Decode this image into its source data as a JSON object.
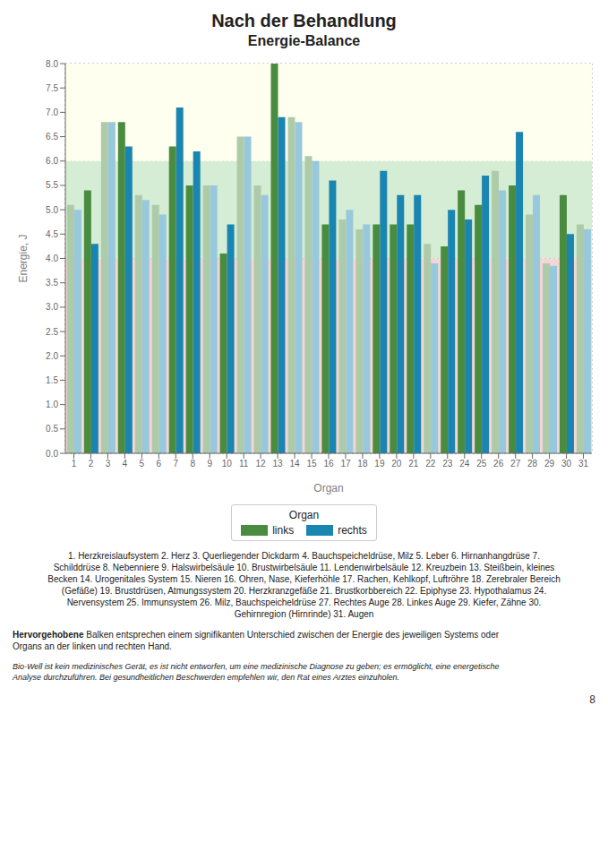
{
  "chart_data": {
    "type": "bar",
    "title": "Nach der Behandlung",
    "subtitle": "Energie-Balance",
    "xlabel": "Organ",
    "ylabel": "Energie, J",
    "categories": [
      1,
      2,
      3,
      4,
      5,
      6,
      7,
      8,
      9,
      10,
      11,
      12,
      13,
      14,
      15,
      16,
      17,
      18,
      19,
      20,
      21,
      22,
      23,
      24,
      25,
      26,
      27,
      28,
      29,
      30,
      31
    ],
    "series": [
      {
        "name": "links",
        "color": "#4a8c3f",
        "colors": [
          "#aecba9",
          "#4a8c3f",
          "#aecba9",
          "#4a8c3f",
          "#aecba9",
          "#aecba9",
          "#4a8c3f",
          "#4a8c3f",
          "#aecba9",
          "#4a8c3f",
          "#aecba9",
          "#aecba9",
          "#4a8c3f",
          "#aecba9",
          "#aecba9",
          "#4a8c3f",
          "#aecba9",
          "#aecba9",
          "#4a8c3f",
          "#4a8c3f",
          "#4a8c3f",
          "#aecba9",
          "#4a8c3f",
          "#4a8c3f",
          "#4a8c3f",
          "#aecba9",
          "#4a8c3f",
          "#aecba9",
          "#aecba9",
          "#4a8c3f",
          "#aecba9"
        ],
        "values": [
          5.1,
          5.4,
          6.8,
          6.8,
          5.3,
          5.1,
          6.3,
          5.5,
          5.5,
          4.1,
          6.5,
          5.5,
          8.0,
          6.9,
          6.1,
          4.7,
          4.8,
          4.6,
          4.7,
          4.7,
          4.7,
          4.3,
          4.25,
          5.4,
          5.1,
          5.8,
          5.5,
          4.9,
          3.9,
          5.3,
          4.7
        ]
      },
      {
        "name": "rechts",
        "color": "#1a85b0",
        "colors": [
          "#98c8db",
          "#1a85b0",
          "#98c8db",
          "#1a85b0",
          "#98c8db",
          "#98c8db",
          "#1a85b0",
          "#1a85b0",
          "#98c8db",
          "#1a85b0",
          "#98c8db",
          "#98c8db",
          "#1a85b0",
          "#98c8db",
          "#98c8db",
          "#1a85b0",
          "#98c8db",
          "#98c8db",
          "#1a85b0",
          "#1a85b0",
          "#1a85b0",
          "#98c8db",
          "#1a85b0",
          "#1a85b0",
          "#1a85b0",
          "#98c8db",
          "#1a85b0",
          "#98c8db",
          "#98c8db",
          "#1a85b0",
          "#98c8db"
        ],
        "values": [
          5.0,
          4.3,
          6.8,
          6.3,
          5.2,
          4.9,
          7.1,
          6.2,
          5.5,
          4.7,
          6.5,
          5.3,
          6.9,
          6.8,
          6.0,
          5.6,
          5.0,
          4.7,
          5.8,
          5.3,
          5.3,
          3.9,
          5.0,
          4.8,
          5.7,
          5.4,
          6.6,
          5.3,
          3.85,
          4.5,
          4.6
        ]
      }
    ],
    "ylim": [
      0.0,
      8.0
    ],
    "yticks": [
      {
        "value": 0,
        "label": "0.0"
      },
      0.5,
      {
        "value": 1,
        "label": "1.0"
      },
      1.5,
      {
        "value": 2,
        "label": "2.0"
      },
      2.5,
      {
        "value": 3,
        "label": "3.0"
      },
      3.5,
      {
        "value": 4,
        "label": "4.0"
      },
      4.5,
      {
        "value": 5,
        "label": "5.0"
      },
      5.5,
      {
        "value": 6,
        "label": "6.0"
      },
      6.5,
      {
        "value": 7,
        "label": "7.0"
      },
      7.5,
      {
        "value": 8,
        "label": "8.0"
      }
    ],
    "grid": true,
    "legend": "bottom",
    "legend_title": "Organ",
    "zones": [
      {
        "from": 0,
        "to": 4,
        "color": "#f5d5d5"
      },
      {
        "from": 4,
        "to": 6,
        "color": "#d5edd5"
      },
      {
        "from": 6,
        "to": 8,
        "color": "#fffff0"
      }
    ],
    "annotations": [
      "1. Herzkreislaufsystem 2. Herz 3. Querliegender Dickdarm 4. Bauchspeicheldrüse, Milz 5. Leber 6. Hirnanhangdrüse 7.",
      "Schilddrüse 8. Nebenniere 9. Halswirbelsäule 10. Brustwirbelsäule 11. Lendenwirbelsäule 12. Kreuzbein 13. Steißbein, kleines",
      "Becken 14. Urogenitales System 15. Nieren 16. Ohren, Nase, Kieferhöhle 17. Rachen, Kehlkopf, Luftröhre 18. Zerebraler Bereich",
      "(Gefäße) 19. Brustdrüsen, Atmungssystem 20. Herzkranzgefäße 21. Brustkorbbereich 22. Epiphyse 23. Hypothalamus 24.",
      "Nervensystem 25. Immunsystem 26. Milz, Bauchspeicheldrüse 27. Rechtes Auge 28. Linkes Auge 29. Kiefer, Zähne 30.",
      "Gehirnregion (Hirnrinde) 31. Augen"
    ],
    "footnote": {
      "bold": "Hervorgehobene",
      "text": " Balken entsprechen einem signifikanten Unterschied zwischen der Energie des jeweiligen Systems oder\nOrgans an der linken und rechten Hand."
    },
    "disclaimer": "Bio-Well ist kein medizinisches Gerät, es ist nicht entworfen, um eine medizinische Diagnose zu geben; es ermöglicht, eine energetische\nAnalyse durchzuführen. Bei gesundheitlichen Beschwerden empfehlen wir, den Rat eines Arztes einzuholen.",
    "page_number": "8"
  }
}
